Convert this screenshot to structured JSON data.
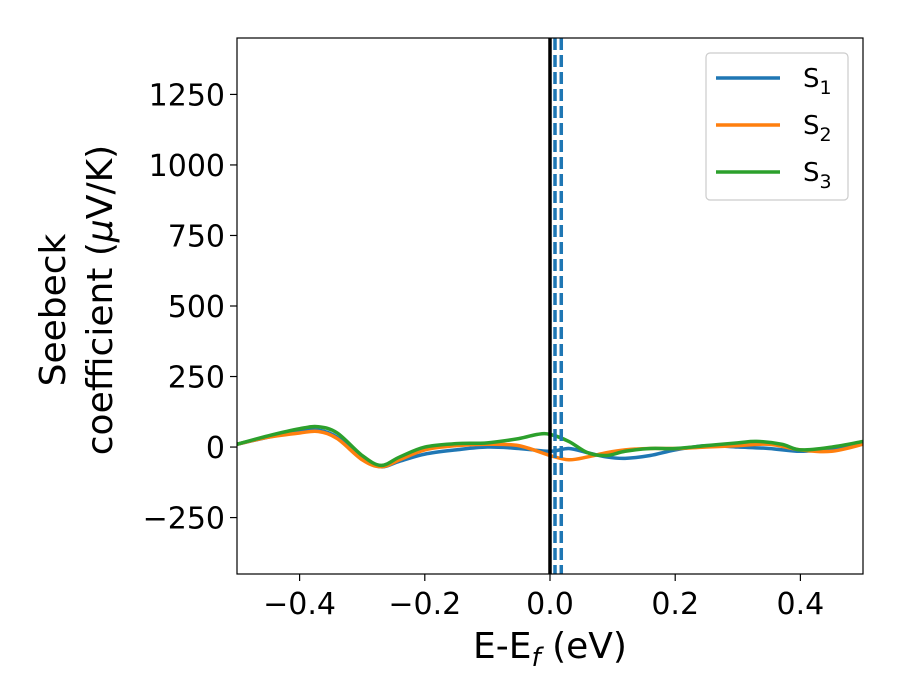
{
  "chart_data": {
    "type": "line",
    "title": "",
    "xlabel": "E-E",
    "xlabel_sub": "f",
    "xlabel_unit": " (eV)",
    "ylabel_line1": "Seebeck",
    "ylabel_line2": "coefficient  (",
    "ylabel_mu": "μ",
    "ylabel_unit": "V/K)",
    "xlim": [
      -0.5,
      0.5
    ],
    "ylim": [
      -450,
      1450
    ],
    "xticks": [
      -0.4,
      -0.2,
      0.0,
      0.2,
      0.4
    ],
    "xtick_labels": [
      "−0.4",
      "−0.2",
      "0.0",
      "0.2",
      "0.4"
    ],
    "yticks": [
      -250,
      0,
      250,
      500,
      750,
      1000,
      1250
    ],
    "ytick_labels": [
      "−250",
      "0",
      "250",
      "500",
      "750",
      "1000",
      "1250"
    ],
    "grid": false,
    "legend_position": "top-right",
    "vlines": [
      {
        "x": 0.0,
        "style": "solid",
        "color": "#000000"
      },
      {
        "x": 0.008,
        "style": "dashed",
        "color": "#1f77b4"
      },
      {
        "x": 0.018,
        "style": "dashed",
        "color": "#1f77b4"
      }
    ],
    "series": [
      {
        "name": "S",
        "sub": "1",
        "color": "#1f77b4",
        "x": [
          -0.5,
          -0.45,
          -0.4,
          -0.37,
          -0.34,
          -0.3,
          -0.27,
          -0.24,
          -0.2,
          -0.15,
          -0.1,
          -0.05,
          0.0,
          0.03,
          0.06,
          0.09,
          0.12,
          0.16,
          0.2,
          0.25,
          0.3,
          0.35,
          0.4,
          0.45,
          0.5
        ],
        "y": [
          10,
          35,
          55,
          60,
          35,
          -40,
          -70,
          -50,
          -25,
          -10,
          0,
          -5,
          -15,
          -5,
          -20,
          -35,
          -40,
          -30,
          -10,
          5,
          0,
          -5,
          -15,
          -5,
          15
        ]
      },
      {
        "name": "S",
        "sub": "2",
        "color": "#ff7f0e",
        "x": [
          -0.5,
          -0.45,
          -0.4,
          -0.37,
          -0.34,
          -0.3,
          -0.27,
          -0.24,
          -0.2,
          -0.15,
          -0.1,
          -0.05,
          0.0,
          0.03,
          0.06,
          0.09,
          0.12,
          0.16,
          0.2,
          0.25,
          0.3,
          0.35,
          0.4,
          0.45,
          0.5
        ],
        "y": [
          10,
          35,
          50,
          55,
          30,
          -45,
          -70,
          -45,
          -10,
          5,
          10,
          5,
          -30,
          -45,
          -35,
          -20,
          -10,
          -5,
          -5,
          0,
          5,
          10,
          -10,
          -15,
          10
        ]
      },
      {
        "name": "S",
        "sub": "3",
        "color": "#2ca02c",
        "x": [
          -0.5,
          -0.45,
          -0.4,
          -0.37,
          -0.34,
          -0.3,
          -0.27,
          -0.24,
          -0.2,
          -0.15,
          -0.1,
          -0.05,
          -0.02,
          0.0,
          0.03,
          0.06,
          0.09,
          0.12,
          0.16,
          0.2,
          0.25,
          0.3,
          0.33,
          0.37,
          0.4,
          0.45,
          0.5
        ],
        "y": [
          10,
          40,
          65,
          72,
          50,
          -30,
          -65,
          -35,
          0,
          12,
          15,
          30,
          45,
          45,
          20,
          -20,
          -30,
          -15,
          -5,
          -5,
          5,
          15,
          20,
          10,
          -10,
          0,
          20
        ]
      }
    ]
  }
}
